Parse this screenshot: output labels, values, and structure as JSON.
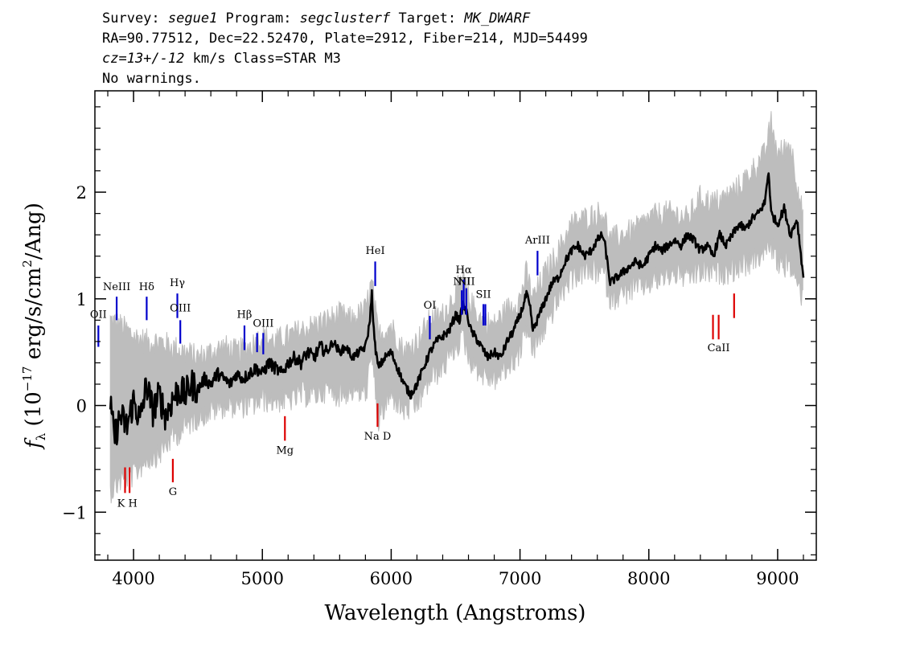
{
  "header": {
    "line1": {
      "survey_label": "Survey: ",
      "survey": "segue1",
      "program_label": " Program: ",
      "program": "segclusterf",
      "target_label": " Target: ",
      "target": "MK_DWARF"
    },
    "line2": "RA=90.77512, Dec=22.52470, Plate=2912, Fiber=214, MJD=54499",
    "line3": {
      "cz": "cz=13+/-12",
      "rest": " km/s Class=STAR M3"
    },
    "line4": "No warnings."
  },
  "chart_data": {
    "type": "line",
    "xlabel": "Wavelength (Angstroms)",
    "ylabel_parts": {
      "f": "f",
      "sub": "λ",
      "pre": " (10",
      "exp": "−17",
      "mid": " erg/s/cm",
      "exp2": "2",
      "post": "/Ang)"
    },
    "xlim": [
      3700,
      9300
    ],
    "ylim": [
      -1.45,
      2.95
    ],
    "x_ticks": [
      4000,
      5000,
      6000,
      7000,
      8000,
      9000
    ],
    "y_ticks": [
      -1,
      0,
      1,
      2
    ],
    "y_tick_labels": [
      "−1",
      "0",
      "1",
      "2"
    ],
    "series": [
      {
        "role": "error-envelope",
        "color": "#bdbdbd",
        "x": [
          3820,
          3900,
          4000,
          4100,
          4200,
          4300,
          4400,
          4500,
          4600,
          4700,
          4800,
          4900,
          5000,
          5100,
          5200,
          5300,
          5400,
          5500,
          5600,
          5700,
          5800,
          5850,
          5900,
          6000,
          6100,
          6200,
          6300,
          6400,
          6500,
          6560,
          6600,
          6700,
          6800,
          6900,
          7000,
          7050,
          7100,
          7200,
          7300,
          7400,
          7500,
          7600,
          7650,
          7700,
          7800,
          7900,
          8000,
          8100,
          8200,
          8300,
          8400,
          8500,
          8600,
          8700,
          8800,
          8900,
          8950,
          9000,
          9100,
          9200
        ],
        "y_upper": [
          0.75,
          0.7,
          0.6,
          0.55,
          0.55,
          0.5,
          0.45,
          0.4,
          0.45,
          0.5,
          0.45,
          0.5,
          0.6,
          0.55,
          0.6,
          0.65,
          0.7,
          0.75,
          0.8,
          0.75,
          0.85,
          1.1,
          0.6,
          0.7,
          0.45,
          0.55,
          0.75,
          0.8,
          1.0,
          1.15,
          0.95,
          0.75,
          0.7,
          0.85,
          0.95,
          1.2,
          0.95,
          1.2,
          1.4,
          1.65,
          1.7,
          1.75,
          1.75,
          1.5,
          1.55,
          1.6,
          1.7,
          1.75,
          1.75,
          1.7,
          1.9,
          1.85,
          1.9,
          2.0,
          2.15,
          2.3,
          2.6,
          2.3,
          2.4,
          1.7
        ],
        "y_lower": [
          -0.75,
          -0.65,
          -0.6,
          -0.45,
          -0.4,
          -0.25,
          -0.15,
          -0.05,
          0.0,
          0.05,
          0.05,
          0.05,
          0.1,
          0.1,
          0.1,
          0.15,
          0.15,
          0.2,
          0.15,
          0.2,
          0.15,
          0.5,
          -0.1,
          0.15,
          0.0,
          0.05,
          0.3,
          0.4,
          0.6,
          0.7,
          0.5,
          0.35,
          0.3,
          0.4,
          0.55,
          0.8,
          0.55,
          0.8,
          1.05,
          1.25,
          1.3,
          1.3,
          1.3,
          1.05,
          1.1,
          1.15,
          1.2,
          1.25,
          1.3,
          1.25,
          1.3,
          1.3,
          1.3,
          1.35,
          1.4,
          1.5,
          1.55,
          1.4,
          1.35,
          1.05
        ]
      },
      {
        "role": "flux",
        "color": "#000000",
        "x": [
          3820,
          3850,
          3900,
          3950,
          4000,
          4050,
          4100,
          4150,
          4200,
          4250,
          4300,
          4350,
          4400,
          4450,
          4500,
          4550,
          4600,
          4650,
          4700,
          4750,
          4800,
          4850,
          4900,
          4950,
          5000,
          5050,
          5100,
          5150,
          5200,
          5250,
          5300,
          5350,
          5400,
          5450,
          5500,
          5550,
          5600,
          5650,
          5700,
          5750,
          5800,
          5830,
          5850,
          5870,
          5900,
          5950,
          6000,
          6050,
          6100,
          6150,
          6200,
          6250,
          6300,
          6350,
          6400,
          6450,
          6500,
          6530,
          6560,
          6590,
          6620,
          6650,
          6700,
          6750,
          6800,
          6850,
          6900,
          6950,
          7000,
          7030,
          7050,
          7080,
          7100,
          7150,
          7200,
          7250,
          7300,
          7350,
          7400,
          7450,
          7500,
          7550,
          7600,
          7640,
          7660,
          7700,
          7750,
          7800,
          7850,
          7900,
          7950,
          8000,
          8050,
          8100,
          8150,
          8200,
          8250,
          8300,
          8350,
          8400,
          8450,
          8500,
          8550,
          8600,
          8650,
          8700,
          8750,
          8800,
          8850,
          8900,
          8930,
          8950,
          9000,
          9050,
          9100,
          9150,
          9200
        ],
        "y": [
          0.0,
          -0.3,
          -0.1,
          -0.2,
          0.05,
          -0.15,
          0.2,
          -0.05,
          0.1,
          -0.1,
          0.05,
          0.15,
          0.1,
          0.2,
          0.15,
          0.25,
          0.2,
          0.3,
          0.25,
          0.2,
          0.3,
          0.25,
          0.3,
          0.35,
          0.3,
          0.4,
          0.35,
          0.3,
          0.4,
          0.45,
          0.4,
          0.5,
          0.45,
          0.55,
          0.5,
          0.6,
          0.5,
          0.55,
          0.45,
          0.5,
          0.55,
          0.75,
          1.05,
          0.6,
          0.35,
          0.45,
          0.5,
          0.35,
          0.2,
          0.1,
          0.2,
          0.35,
          0.5,
          0.6,
          0.65,
          0.7,
          0.85,
          0.8,
          0.95,
          0.85,
          0.7,
          0.65,
          0.55,
          0.45,
          0.5,
          0.45,
          0.6,
          0.7,
          0.85,
          0.95,
          1.05,
          0.9,
          0.7,
          0.85,
          1.0,
          1.15,
          1.2,
          1.35,
          1.45,
          1.5,
          1.4,
          1.45,
          1.55,
          1.6,
          1.5,
          1.15,
          1.2,
          1.25,
          1.3,
          1.35,
          1.3,
          1.4,
          1.5,
          1.45,
          1.5,
          1.55,
          1.5,
          1.6,
          1.55,
          1.45,
          1.5,
          1.4,
          1.6,
          1.5,
          1.6,
          1.7,
          1.65,
          1.75,
          1.8,
          1.9,
          2.2,
          1.8,
          1.7,
          1.85,
          1.6,
          1.75,
          1.2
        ]
      }
    ],
    "line_markers": {
      "emission": {
        "color": "#0000cc",
        "lines": [
          {
            "x": 3727,
            "y0": 0.55,
            "y1": 0.75,
            "label": "OII",
            "ly": 0.82
          },
          {
            "x": 3869,
            "y0": 0.8,
            "y1": 1.02,
            "label": "NeIII",
            "ly": 1.08
          },
          {
            "x": 4102,
            "y0": 0.8,
            "y1": 1.02,
            "label": "Hδ",
            "ly": 1.08
          },
          {
            "x": 4340,
            "y0": 0.82,
            "y1": 1.05,
            "label": "Hγ",
            "ly": 1.12
          },
          {
            "x": 4363,
            "y0": 0.58,
            "y1": 0.8,
            "label": "OIII",
            "ly": 0.88
          },
          {
            "x": 4861,
            "y0": 0.52,
            "y1": 0.75,
            "label": "Hβ",
            "ly": 0.82
          },
          {
            "x": 4959,
            "y0": 0.5,
            "y1": 0.68,
            "label": "",
            "ly": 0
          },
          {
            "x": 5007,
            "y0": 0.48,
            "y1": 0.68,
            "label": "OIII",
            "ly": 0.74
          },
          {
            "x": 5876,
            "y0": 1.12,
            "y1": 1.35,
            "label": "HeI",
            "ly": 1.42
          },
          {
            "x": 6300,
            "y0": 0.62,
            "y1": 0.84,
            "label": "OI",
            "ly": 0.91
          },
          {
            "x": 6548,
            "y0": 0.85,
            "y1": 1.08,
            "label": "NII",
            "ly": 1.13
          },
          {
            "x": 6563,
            "y0": 0.9,
            "y1": 1.18,
            "label": "Hα",
            "ly": 1.24
          },
          {
            "x": 6583,
            "y0": 0.85,
            "y1": 1.1,
            "label": "NII",
            "ly": 1.13
          },
          {
            "x": 6716,
            "y0": 0.75,
            "y1": 0.95,
            "label": "SII",
            "ly": 1.01
          },
          {
            "x": 6731,
            "y0": 0.75,
            "y1": 0.95,
            "label": "",
            "ly": 0
          },
          {
            "x": 7136,
            "y0": 1.22,
            "y1": 1.45,
            "label": "ArIII",
            "ly": 1.52
          }
        ]
      },
      "absorption": {
        "color": "#dd0000",
        "lines": [
          {
            "x": 3934,
            "y0": -0.82,
            "y1": -0.58,
            "label": "",
            "ly": 0
          },
          {
            "x": 3969,
            "y0": -0.82,
            "y1": -0.58,
            "label": "",
            "ly": 0
          },
          {
            "x": 4305,
            "y0": -0.72,
            "y1": -0.5,
            "label": "G",
            "ly": -0.84
          },
          {
            "x": 5175,
            "y0": -0.33,
            "y1": -0.1,
            "label": "Mg",
            "ly": -0.45
          },
          {
            "x": 5894,
            "y0": -0.2,
            "y1": 0.02,
            "label": "Na  D",
            "ly": -0.32
          },
          {
            "x": 8498,
            "y0": 0.62,
            "y1": 0.85,
            "label": "",
            "ly": 0
          },
          {
            "x": 8542,
            "y0": 0.62,
            "y1": 0.85,
            "label": "CaII",
            "ly": 0.51
          },
          {
            "x": 8662,
            "y0": 0.82,
            "y1": 1.05,
            "label": "",
            "ly": 0
          }
        ],
        "kh_label": {
          "x": 3951,
          "label": "K H",
          "ly": -0.95
        }
      }
    }
  }
}
